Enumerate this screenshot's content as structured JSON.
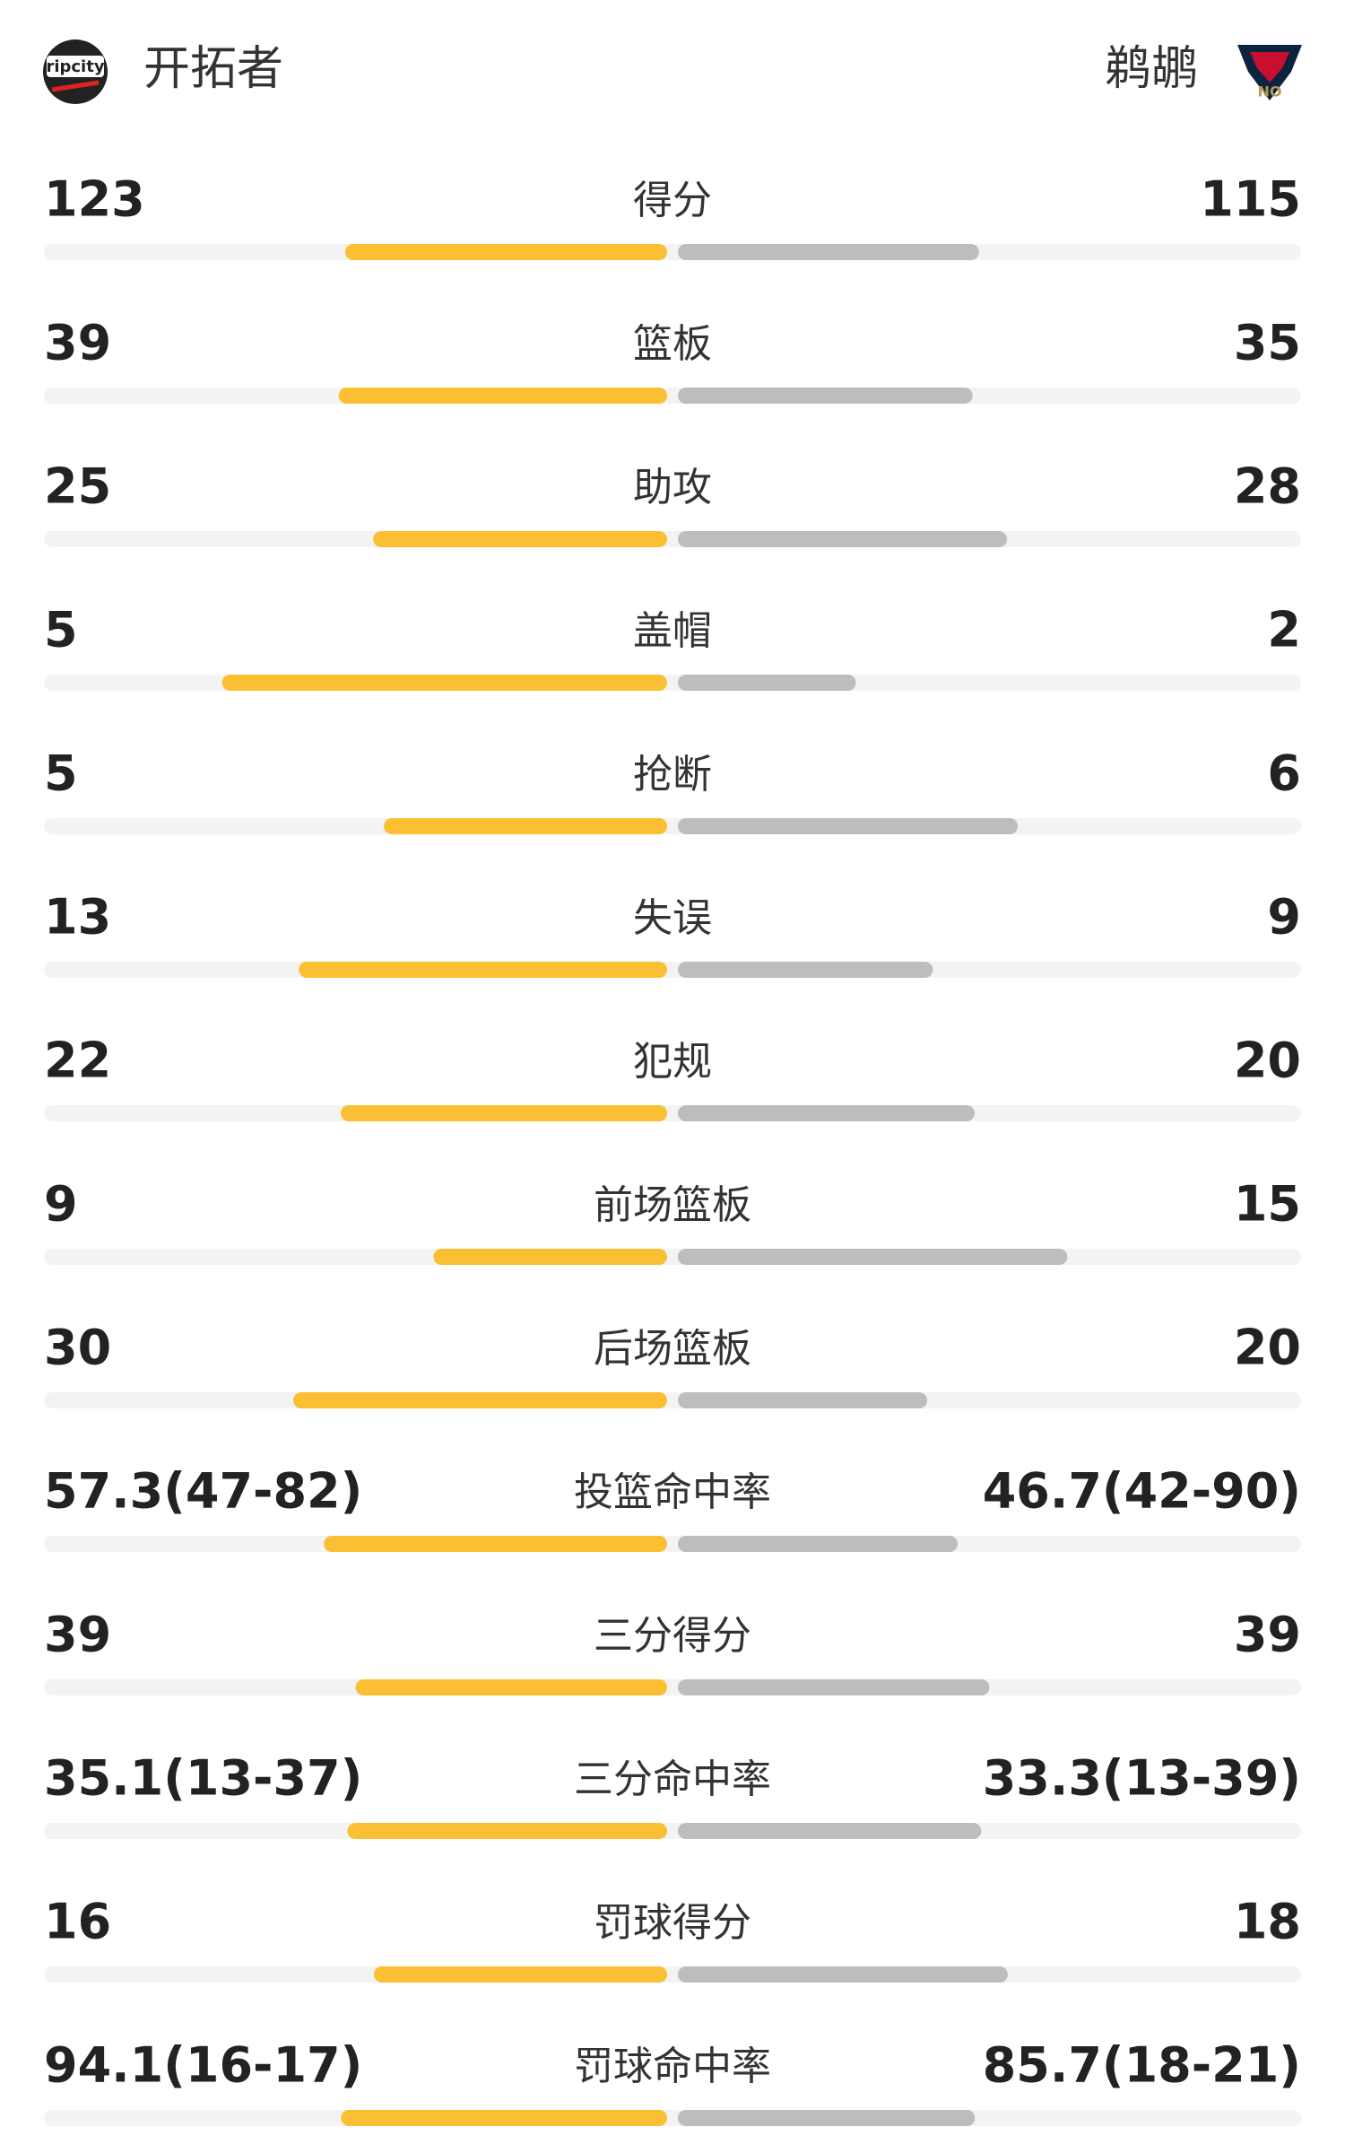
{
  "header": {
    "home_team": "开拓者",
    "away_team": "鹈鹕"
  },
  "rows": [
    {
      "label": "得分",
      "home": 123,
      "away": 115
    },
    {
      "label": "篮板",
      "home": 39,
      "away": 35
    },
    {
      "label": "助攻",
      "home": 25,
      "away": 28
    },
    {
      "label": "盖帽",
      "home": 5,
      "away": 2
    },
    {
      "label": "抢断",
      "home": 5,
      "away": 6
    },
    {
      "label": "失误",
      "home": 13,
      "away": 9
    },
    {
      "label": "犯规",
      "home": 22,
      "away": 20
    },
    {
      "label": "前场篮板",
      "home": 9,
      "away": 15
    },
    {
      "label": "后场篮板",
      "home": 30,
      "away": 20
    },
    {
      "label": "投篮命中率",
      "home": {
        "value": 57.3,
        "label": "57.3(47-82)"
      },
      "away": {
        "value": 46.7,
        "label": "46.7(42-90)"
      }
    },
    {
      "label": "三分得分",
      "home": 39,
      "away": 39
    },
    {
      "label": "三分命中率",
      "home": {
        "value": 35.1,
        "label": "35.1(13-37)"
      },
      "away": {
        "value": 33.3,
        "label": "33.3(13-39)"
      }
    },
    {
      "label": "罚球得分",
      "home": 16,
      "away": 18
    },
    {
      "label": "罚球命中率",
      "home": {
        "value": 94.1,
        "label": "94.1(16-17)"
      },
      "away": {
        "value": 85.7,
        "label": "85.7(18-21)"
      }
    }
  ]
}
